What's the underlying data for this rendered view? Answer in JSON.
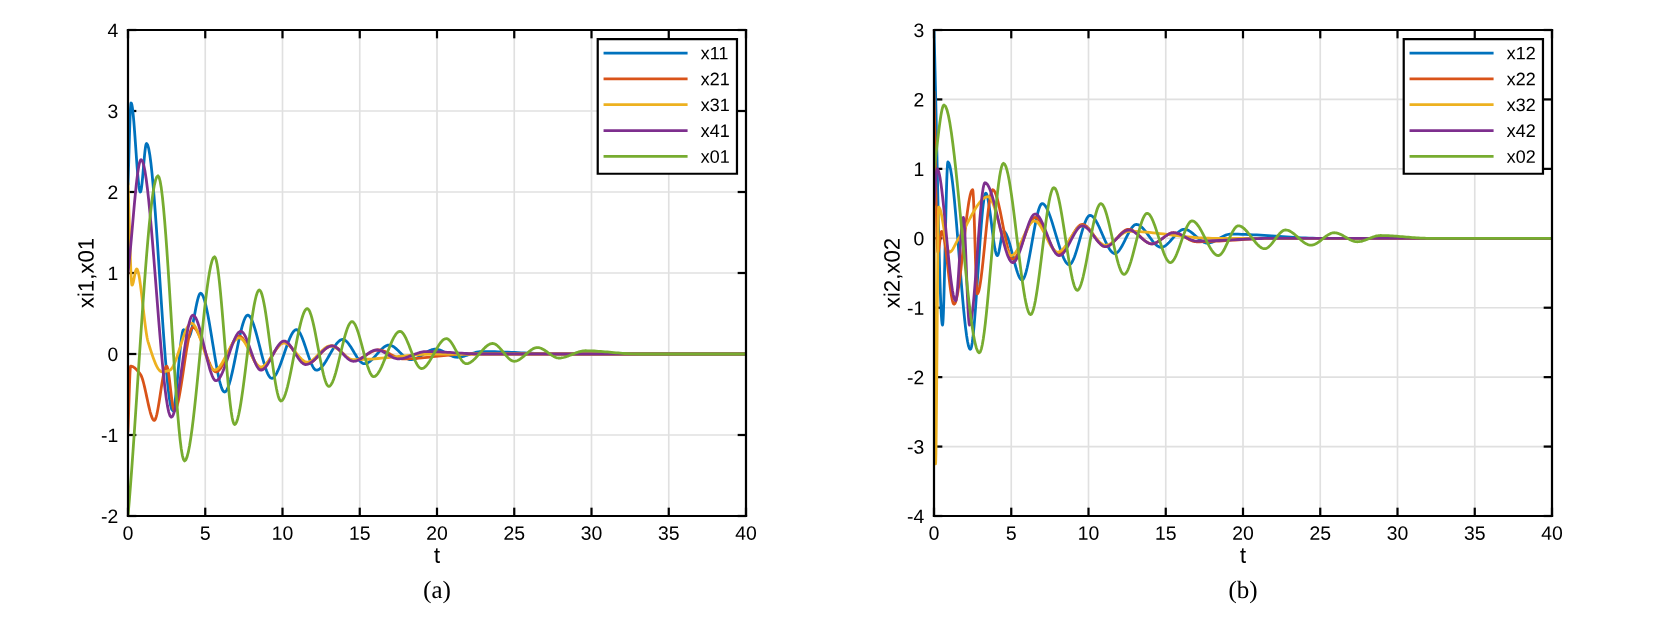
{
  "chart_data": [
    {
      "type": "line",
      "xlabel": "t",
      "ylabel": "xi1,x01",
      "annotations": [
        "(a)"
      ],
      "xlim": [
        0,
        40
      ],
      "ylim": [
        -2,
        4
      ],
      "xticks": [
        0,
        5,
        10,
        15,
        20,
        25,
        30,
        35,
        40
      ],
      "yticks": [
        -2,
        -1,
        0,
        1,
        2,
        3,
        4
      ],
      "grid": true,
      "legend": "top right",
      "marker": "none",
      "line_style": "solid",
      "series": [
        {
          "name": "x11",
          "color": "#0072bd",
          "x": [
            0,
            0.2,
            0.8,
            1.2,
            2.9,
            3.6,
            3.9,
            4.7,
            6.25,
            7.75,
            9.3,
            10.9,
            12.2,
            13.9,
            15.3,
            16.9,
            18.3,
            19.9,
            21.3,
            22.9,
            28,
            40
          ],
          "values": [
            2.1,
            3.1,
            2.0,
            2.6,
            -0.7,
            0.3,
            0.2,
            0.75,
            -0.47,
            0.48,
            -0.3,
            0.3,
            -0.2,
            0.18,
            -0.12,
            0.11,
            -0.07,
            0.06,
            -0.04,
            0.03,
            0,
            0
          ]
        },
        {
          "name": "x21",
          "color": "#d95319",
          "x": [
            0,
            0.17,
            0.8,
            1.7,
            2.5,
            3.0,
            4.2,
            5.7,
            7.2,
            8.6,
            10.1,
            11.6,
            13.2,
            14.6,
            16.2,
            17.8,
            22,
            40
          ],
          "values": [
            -0.95,
            -0.15,
            -0.25,
            -0.82,
            -0.15,
            -0.7,
            0.33,
            -0.22,
            0.22,
            -0.17,
            0.14,
            -0.12,
            0.1,
            -0.08,
            0.05,
            -0.06,
            0,
            0
          ]
        },
        {
          "name": "x31",
          "color": "#edb120",
          "x": [
            0,
            0.26,
            0.56,
            1.3,
            2.2,
            2.7,
            4.1,
            5.6,
            7.2,
            8.6,
            10.1,
            11.6,
            13.1,
            14.6,
            20,
            40
          ],
          "values": [
            2.1,
            0.85,
            1.05,
            0.15,
            -0.22,
            -0.2,
            0.38,
            -0.2,
            0.2,
            -0.16,
            0.14,
            -0.1,
            0.1,
            -0.07,
            0,
            0
          ]
        },
        {
          "name": "x41",
          "color": "#7e2f8e",
          "x": [
            0,
            0.85,
            2.8,
            4.2,
            5.7,
            7.3,
            8.6,
            10.1,
            11.5,
            13.2,
            14.6,
            16.1,
            17.5,
            19.3,
            23,
            40
          ],
          "values": [
            1.0,
            2.4,
            -0.78,
            0.48,
            -0.33,
            0.28,
            -0.2,
            0.16,
            -0.13,
            0.1,
            -0.09,
            0.05,
            -0.06,
            0.03,
            0,
            0
          ]
        },
        {
          "name": "x01",
          "color": "#77ac30",
          "x": [
            0,
            1.94,
            3.66,
            5.6,
            6.9,
            8.5,
            9.9,
            11.6,
            13.0,
            14.5,
            15.9,
            17.6,
            19.0,
            20.6,
            21.9,
            23.6,
            25.0,
            26.5,
            27.9,
            29.6,
            33,
            40
          ],
          "values": [
            -2.0,
            2.2,
            -1.32,
            1.2,
            -0.87,
            0.79,
            -0.58,
            0.56,
            -0.4,
            0.4,
            -0.28,
            0.28,
            -0.18,
            0.19,
            -0.12,
            0.13,
            -0.09,
            0.08,
            -0.05,
            0.04,
            0,
            0
          ]
        }
      ]
    },
    {
      "type": "line",
      "xlabel": "t",
      "ylabel": "xi2,x02",
      "annotations": [
        "(b)"
      ],
      "xlim": [
        0,
        40
      ],
      "ylim": [
        -4,
        3
      ],
      "xticks": [
        0,
        5,
        10,
        15,
        20,
        25,
        30,
        35,
        40
      ],
      "yticks": [
        -4,
        -3,
        -2,
        -1,
        0,
        1,
        2,
        3
      ],
      "grid": true,
      "legend": "top right",
      "marker": "none",
      "line_style": "solid",
      "series": [
        {
          "name": "x12",
          "color": "#0072bd",
          "x": [
            0,
            0.55,
            0.9,
            2.35,
            3.35,
            4.1,
            4.5,
            5.7,
            7.0,
            8.75,
            10.1,
            11.7,
            13.1,
            14.7,
            16.2,
            17.7,
            19.2,
            25,
            40
          ],
          "values": [
            3.0,
            -1.25,
            1.1,
            -1.6,
            0.65,
            -0.25,
            0.1,
            -0.6,
            0.5,
            -0.38,
            0.33,
            -0.22,
            0.2,
            -0.13,
            0.13,
            -0.07,
            0.06,
            0,
            0
          ]
        },
        {
          "name": "x22",
          "color": "#d95319",
          "x": [
            0,
            0.25,
            0.5,
            1.3,
            2.5,
            2.8,
            3.8,
            5.1,
            6.55,
            8.06,
            9.6,
            11.1,
            12.6,
            14.1,
            15.5,
            17.0,
            22,
            40
          ],
          "values": [
            2.1,
            -0.2,
            0.1,
            -0.95,
            0.7,
            -0.8,
            0.7,
            -0.3,
            0.3,
            -0.22,
            0.2,
            -0.12,
            0.13,
            -0.08,
            0.08,
            -0.05,
            0,
            0
          ]
        },
        {
          "name": "x32",
          "color": "#edb120",
          "x": [
            0,
            0.1,
            0.3,
            1.0,
            1.6,
            3.5,
            5.0,
            6.5,
            8.0,
            9.6,
            11.1,
            12.6,
            18,
            40
          ],
          "values": [
            0.45,
            -3.25,
            0.45,
            -0.2,
            0,
            0.6,
            -0.25,
            0.25,
            -0.2,
            0.18,
            -0.1,
            0.1,
            0,
            0
          ]
        },
        {
          "name": "x42",
          "color": "#7e2f8e",
          "x": [
            0,
            0.2,
            1.4,
            1.9,
            2.3,
            3.3,
            5.1,
            6.55,
            8.1,
            9.6,
            11.1,
            12.6,
            14.1,
            15.5,
            17.0,
            22,
            40
          ],
          "values": [
            0.5,
            1.0,
            -0.9,
            0.3,
            -1.25,
            0.8,
            -0.35,
            0.35,
            -0.25,
            0.18,
            -0.12,
            0.12,
            -0.08,
            0.08,
            -0.04,
            0,
            0
          ]
        },
        {
          "name": "x02",
          "color": "#77ac30",
          "x": [
            0,
            0.65,
            2.93,
            4.5,
            6.25,
            7.76,
            9.27,
            10.8,
            12.3,
            13.8,
            15.3,
            16.7,
            18.4,
            19.7,
            21.4,
            22.75,
            24.4,
            25.9,
            27.4,
            28.9,
            32,
            40
          ],
          "values": [
            1.0,
            1.92,
            -1.65,
            1.08,
            -1.1,
            0.73,
            -0.75,
            0.5,
            -0.52,
            0.36,
            -0.35,
            0.25,
            -0.25,
            0.18,
            -0.15,
            0.12,
            -0.1,
            0.08,
            -0.05,
            0.04,
            0,
            0
          ]
        }
      ]
    }
  ]
}
